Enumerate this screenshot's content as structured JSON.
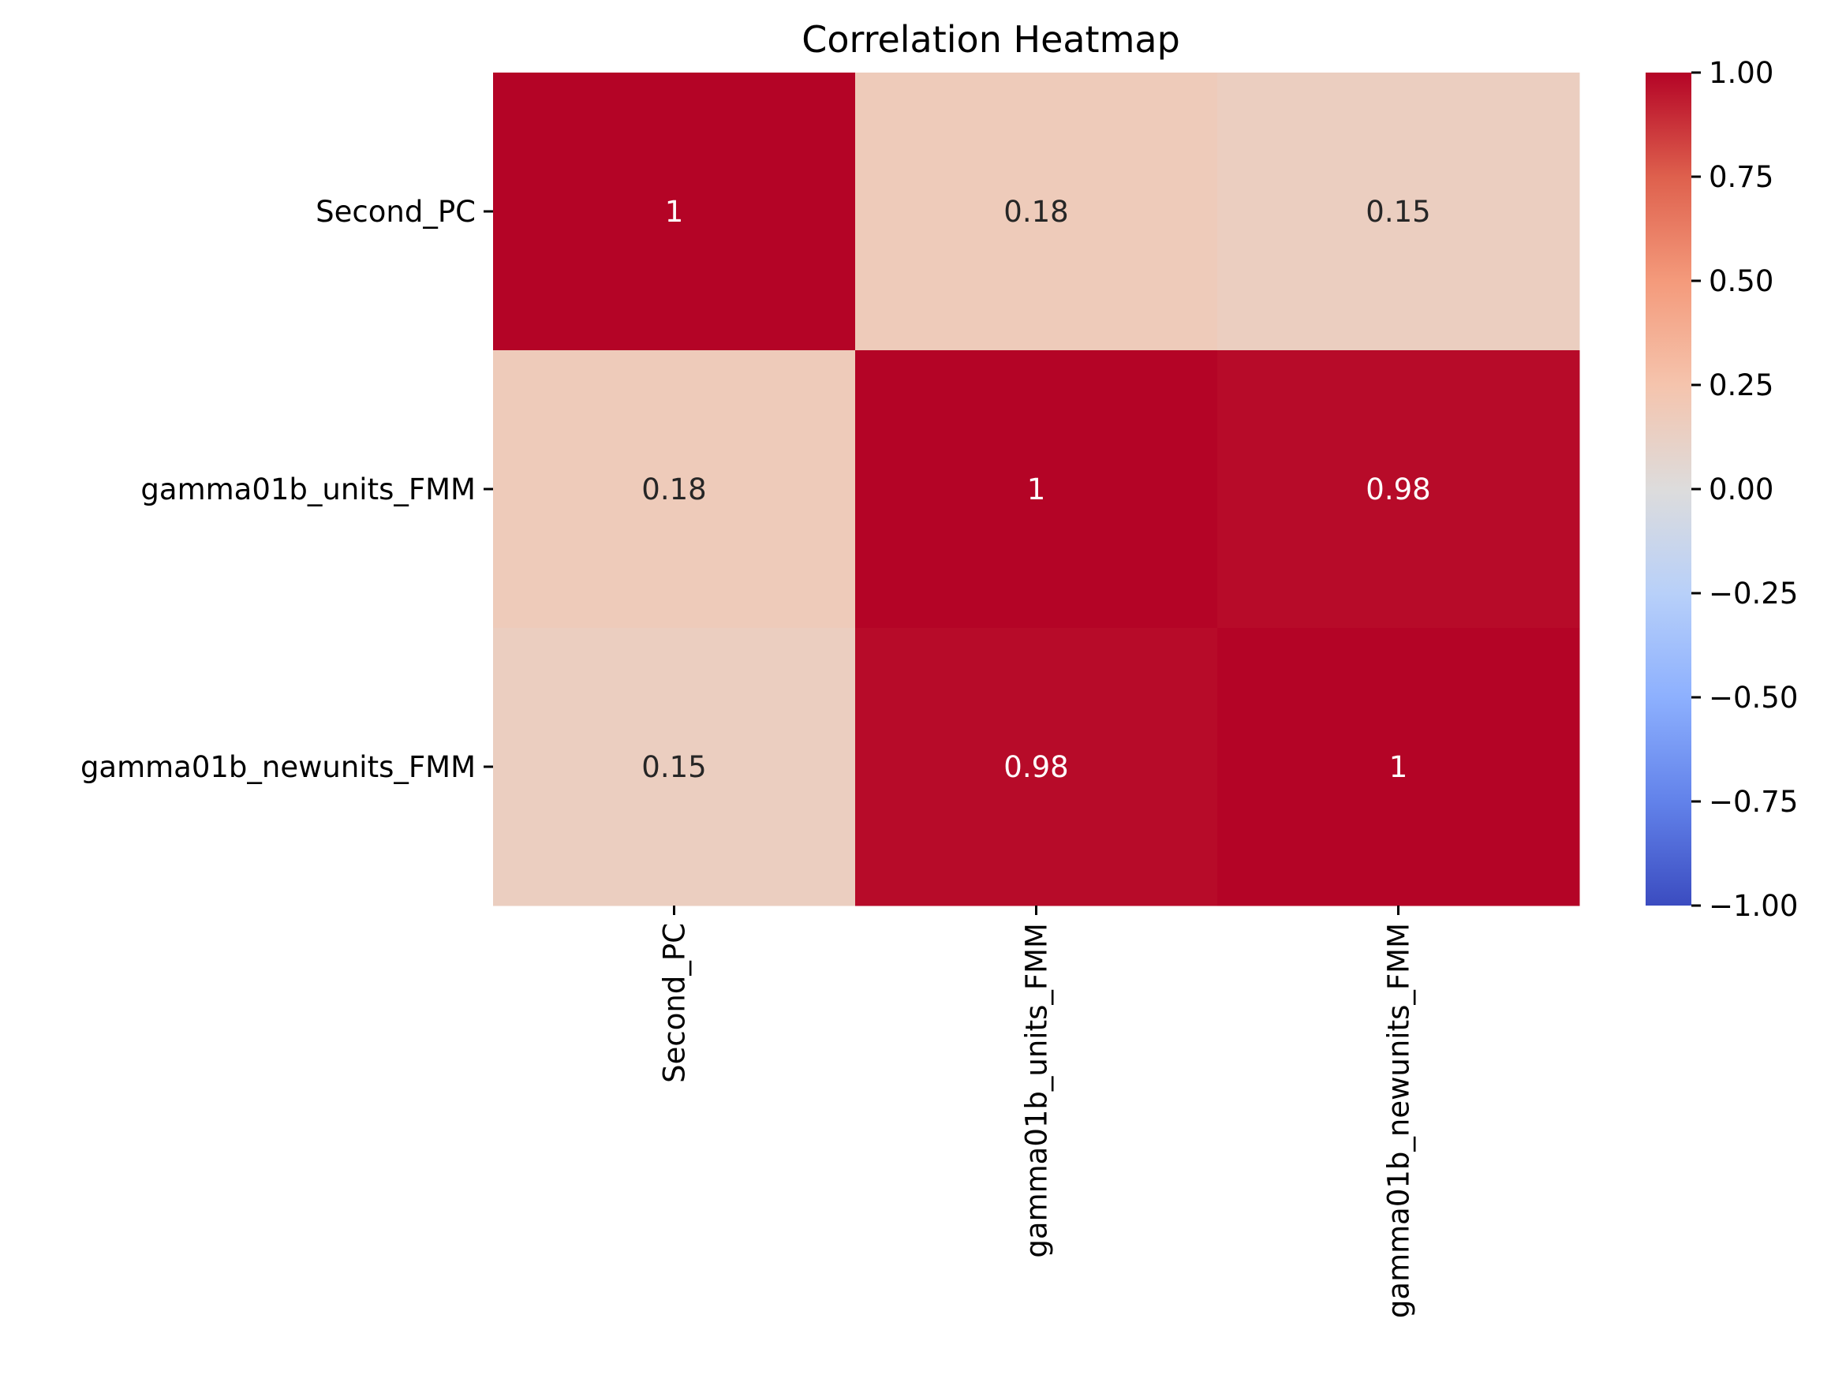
{
  "chart_data": {
    "type": "heatmap",
    "title": "Correlation Heatmap",
    "rows": [
      "Second_PC",
      "gamma01b_units_FMM",
      "gamma01b_newunits_FMM"
    ],
    "columns": [
      "Second_PC",
      "gamma01b_units_FMM",
      "gamma01b_newunits_FMM"
    ],
    "values": [
      [
        1,
        0.18,
        0.15
      ],
      [
        0.18,
        1,
        0.98
      ],
      [
        0.15,
        0.98,
        1
      ]
    ],
    "cell_labels": [
      [
        "1",
        "0.18",
        "0.15"
      ],
      [
        "0.18",
        "1",
        "0.98"
      ],
      [
        "0.15",
        "0.98",
        "1"
      ]
    ],
    "colormap": "coolwarm",
    "colorbar": {
      "vmin": -1,
      "vmax": 1,
      "ticks": [
        1.0,
        0.75,
        0.5,
        0.25,
        0.0,
        -0.25,
        -0.5,
        -0.75,
        -1.0
      ],
      "tick_labels": [
        "1.00",
        "0.75",
        "0.50",
        "0.25",
        "0.00",
        "−0.25",
        "−0.50",
        "−0.75",
        "−1.00"
      ],
      "colors": {
        "low": "#3b4cc0",
        "mid": "#dddcdc",
        "high": "#b40426"
      }
    }
  }
}
